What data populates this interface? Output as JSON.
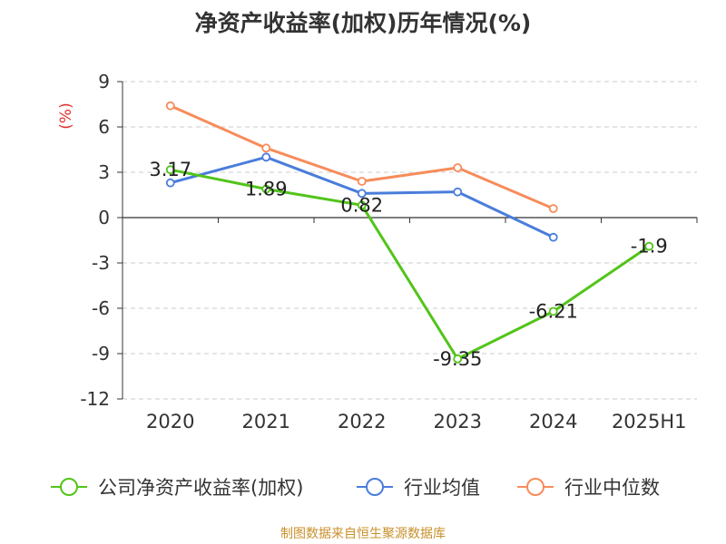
{
  "chart_data": {
    "type": "line",
    "title": "净资产收益率(加权)历年情况(%)",
    "ylabel": "(%)",
    "categories": [
      "2020",
      "2021",
      "2022",
      "2023",
      "2024",
      "2025H1"
    ],
    "yticks": [
      "9",
      "6",
      "3",
      "0",
      "-3",
      "-6",
      "-9",
      "-12"
    ],
    "ylim": [
      -12,
      9
    ],
    "grid": true,
    "legend_position": "bottom",
    "series": [
      {
        "name": "公司净资产收益率(加权)",
        "color": "#52c41a",
        "values": [
          3.17,
          1.89,
          0.82,
          -9.35,
          -6.21,
          -1.9
        ],
        "labels": [
          "3.17",
          "1.89",
          "0.82",
          "-9.35",
          "-6.21",
          "-1.9"
        ]
      },
      {
        "name": "行业均值",
        "color": "#4a7ddb",
        "values": [
          2.3,
          4.0,
          1.6,
          1.7,
          -1.3,
          null
        ]
      },
      {
        "name": "行业中位数",
        "color": "#f78c5a",
        "values": [
          7.4,
          4.6,
          2.4,
          3.3,
          0.6,
          null
        ]
      }
    ],
    "source": "制图数据来自恒生聚源数据库",
    "colors": {
      "axis": "#333333",
      "grid": "#cccccc",
      "ylabel": "#e0312f",
      "source": "#c8902b"
    }
  }
}
